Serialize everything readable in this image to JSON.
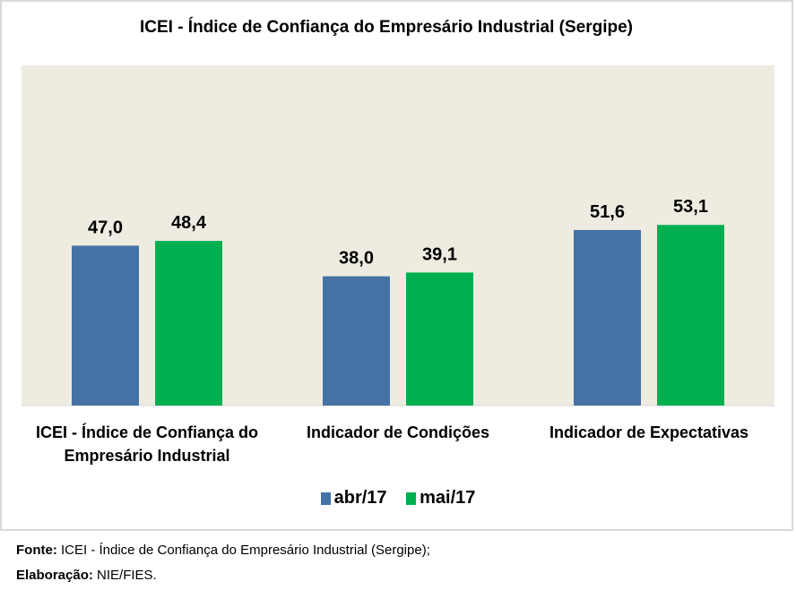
{
  "chart_data": {
    "type": "bar",
    "title": "ICEI - Índice de Confiança do Empresário Industrial (Sergipe)",
    "categories": [
      [
        "ICEI - Índice de Confiança do",
        "Empresário Industrial"
      ],
      [
        "Indicador de Condições"
      ],
      [
        "Indicador de Expectativas"
      ]
    ],
    "series": [
      {
        "name": "abr/17",
        "color": "#4472a4",
        "values": [
          47.0,
          38.0,
          51.6
        ],
        "labels": [
          "47,0",
          "38,0",
          "51,6"
        ]
      },
      {
        "name": "mai/17",
        "color": "#00b050",
        "values": [
          48.4,
          39.1,
          53.1
        ],
        "labels": [
          "48,4",
          "39,1",
          "53,1"
        ]
      }
    ],
    "ylim": [
      0,
      100
    ],
    "grid": false,
    "legend": "bottom",
    "plot_background": "#eeece1",
    "xlabel": "",
    "ylabel": ""
  },
  "footer": {
    "source_label": "Fonte:",
    "source_text": " ICEI - Índice de Confiança do Empresário Industrial (Sergipe);",
    "elab_label": "Elaboração:",
    "elab_text": " NIE/FIES."
  }
}
